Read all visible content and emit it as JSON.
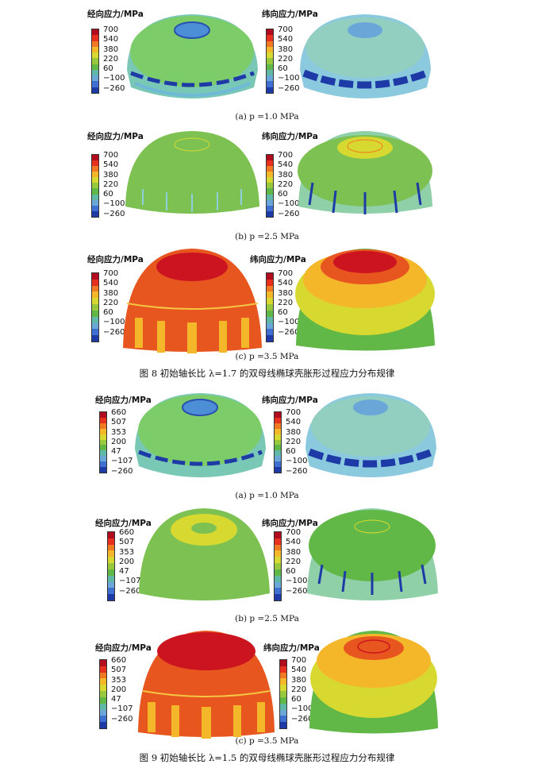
{
  "legend": {
    "radial_label": "经向应力/MPa",
    "hoop_label": "纬向应力/MPa",
    "ticks_fig8": [
      "700",
      "540",
      "380",
      "220",
      "60",
      "−100",
      "−260"
    ],
    "ticks_fig9_radial": [
      "660",
      "507",
      "353",
      "200",
      "47",
      "−107",
      "−260"
    ],
    "ticks_fig9_hoop": [
      "700",
      "540",
      "380",
      "220",
      "60",
      "−100",
      "−260"
    ],
    "colors": [
      "#b10d1f",
      "#e8301f",
      "#f07a23",
      "#f5b72a",
      "#d8d930",
      "#98c83b",
      "#62b847",
      "#5fb9a6",
      "#6aa7d8",
      "#3f6fd0",
      "#1d3aa6"
    ]
  },
  "subcaptions": {
    "a": "(a) p =1.0 MPa",
    "b": "(b) p =2.5 MPa",
    "c": "(c) p =3.5 MPa"
  },
  "figures": {
    "fig8": "图 8    初始轴长比 λ=1.7 的双母线椭球壳胀形过程应力分布规律",
    "fig9": "图 9    初始轴长比 λ=1.5 的双母线椭球壳胀形过程应力分布规律"
  }
}
